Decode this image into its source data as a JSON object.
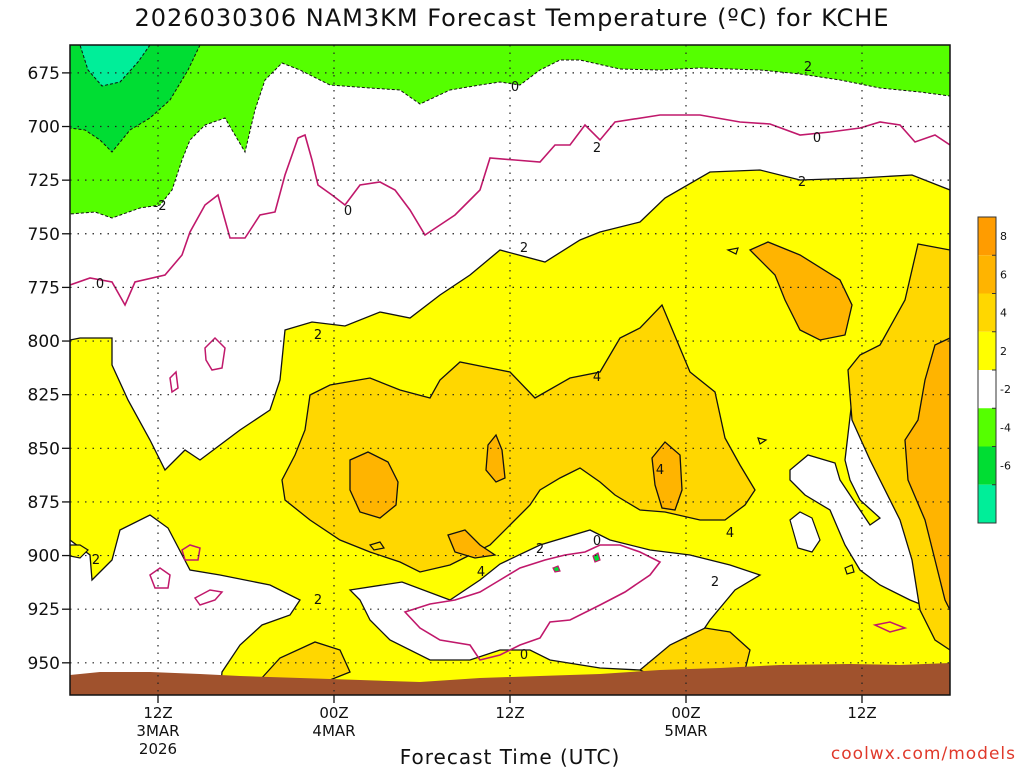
{
  "page": {
    "title": "2026030306 NAM3KM Forecast Temperature (ºC) for KCHE",
    "credit": "coolwx.com/models"
  },
  "chart_data": {
    "type": "contour",
    "title": "2026030306 NAM3KM Forecast Temperature (ºC) for KCHE",
    "xlabel": "Forecast Time (UTC)",
    "ylabel": "",
    "x_ticks": [
      {
        "label": "12Z",
        "sub": [
          "3MAR",
          "2026"
        ],
        "hours": 6
      },
      {
        "label": "00Z",
        "sub": [
          "4MAR"
        ],
        "hours": 18
      },
      {
        "label": "12Z",
        "sub": [],
        "hours": 30
      },
      {
        "label": "00Z",
        "sub": [
          "5MAR"
        ],
        "hours": 42
      },
      {
        "label": "12Z",
        "sub": [],
        "hours": 54
      }
    ],
    "x_range_hours": [
      0,
      60
    ],
    "y_ticks": [
      "675",
      "700",
      "725",
      "750",
      "775",
      "800",
      "825",
      "850",
      "875",
      "900",
      "925",
      "950"
    ],
    "y_range": [
      662,
      965
    ],
    "y_inverted": true,
    "grid": "dotted",
    "colorbar": {
      "position": "right",
      "labels": [
        "8",
        "6",
        "4",
        "2",
        "-2",
        "-4",
        "-6"
      ],
      "bins": [
        {
          "range": [
            8,
            10
          ],
          "color": "#ff9c00"
        },
        {
          "range": [
            6,
            8
          ],
          "color": "#ffb400"
        },
        {
          "range": [
            4,
            6
          ],
          "color": "#ffd700"
        },
        {
          "range": [
            2,
            4
          ],
          "color": "#ffff00"
        },
        {
          "range": [
            -2,
            2
          ],
          "color": "#ffffff"
        },
        {
          "range": [
            -4,
            -2
          ],
          "color": "#55ff00"
        },
        {
          "range": [
            -6,
            -4
          ],
          "color": "#00dd33"
        },
        {
          "range": [
            -8,
            -6
          ],
          "color": "#00ee99"
        }
      ]
    },
    "contour_labels": [
      "2",
      "0",
      "2",
      "0",
      "-2",
      "0",
      "0",
      "2",
      "2",
      "2",
      "4",
      "0",
      "2",
      "4",
      "4",
      "2",
      "0",
      "2",
      "4",
      "2"
    ],
    "surface_color": "#a0522d",
    "zero_line_color": "#c0186b"
  }
}
